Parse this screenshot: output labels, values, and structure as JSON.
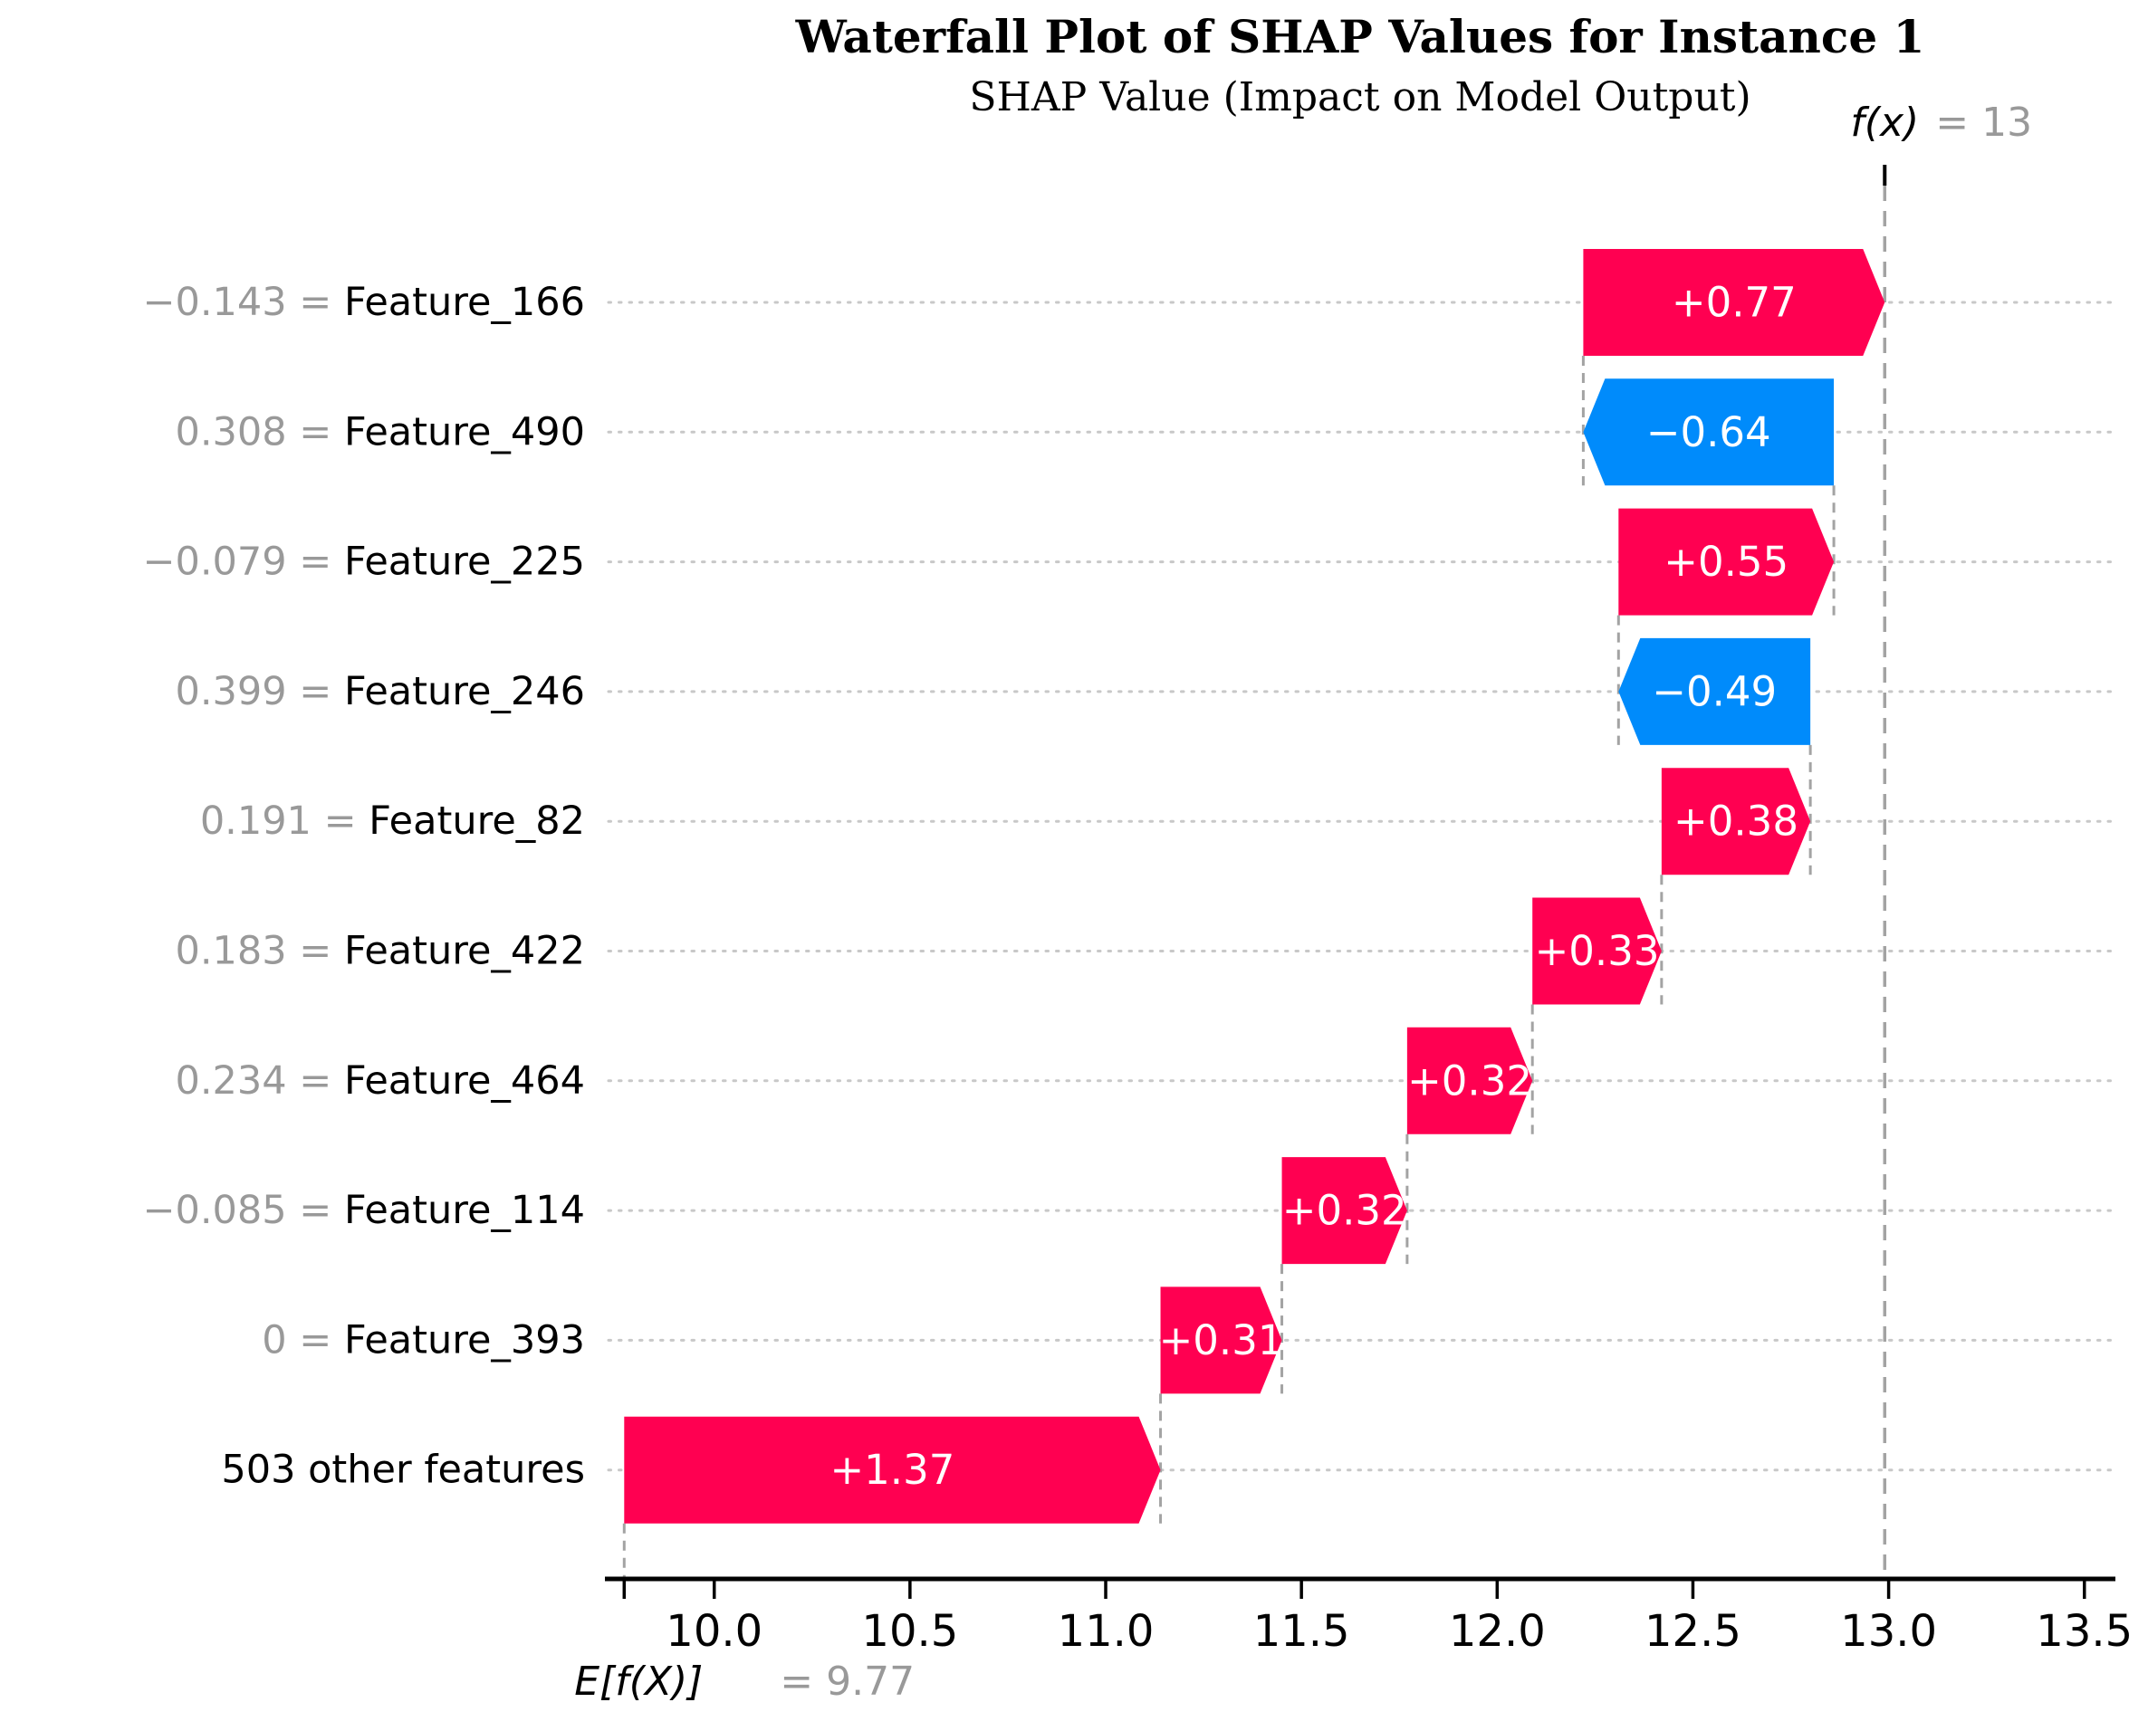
{
  "title": "Waterfall Plot of SHAP Values for Instance 1",
  "subtitle": "SHAP Value (Impact on Model Output)",
  "colors": {
    "positive": "#ff0051",
    "negative": "#008bfb",
    "gray_text": "#999999",
    "grid": "#c8c8c8",
    "connector": "#a3a3a3",
    "axis": "#000000",
    "bar_label": "#ffffff",
    "name_text": "#000000"
  },
  "annotations": {
    "fx_label": "f(x)",
    "fx_value_text": "= 13",
    "base_label": "E[f(X)]",
    "base_value_text": "= 9.77"
  },
  "chart_data": {
    "type": "waterfall",
    "base_value": 9.77,
    "fx_value": 12.99,
    "xlim": [
      9.73,
      13.57
    ],
    "x_ticks": [
      10.0,
      10.5,
      11.0,
      11.5,
      12.0,
      12.5,
      13.0,
      13.5
    ],
    "x_tick_labels": [
      "10.0",
      "10.5",
      "11.0",
      "11.5",
      "12.0",
      "12.5",
      "13.0",
      "13.5"
    ],
    "grid": true,
    "rows": [
      {
        "feature": "Feature_166",
        "feature_value": "−0.143",
        "shap": 0.77,
        "label": "+0.77"
      },
      {
        "feature": "Feature_490",
        "feature_value": "0.308",
        "shap": -0.64,
        "label": "−0.64"
      },
      {
        "feature": "Feature_225",
        "feature_value": "−0.079",
        "shap": 0.55,
        "label": "+0.55"
      },
      {
        "feature": "Feature_246",
        "feature_value": "0.399",
        "shap": -0.49,
        "label": "−0.49"
      },
      {
        "feature": "Feature_82",
        "feature_value": "0.191",
        "shap": 0.38,
        "label": "+0.38"
      },
      {
        "feature": "Feature_422",
        "feature_value": "0.183",
        "shap": 0.33,
        "label": "+0.33"
      },
      {
        "feature": "Feature_464",
        "feature_value": "0.234",
        "shap": 0.32,
        "label": "+0.32"
      },
      {
        "feature": "Feature_114",
        "feature_value": "−0.085",
        "shap": 0.32,
        "label": "+0.32"
      },
      {
        "feature": "Feature_393",
        "feature_value": "0",
        "shap": 0.31,
        "label": "+0.31"
      },
      {
        "feature": "503 other features",
        "feature_value": null,
        "shap": 1.37,
        "label": "+1.37"
      }
    ]
  }
}
